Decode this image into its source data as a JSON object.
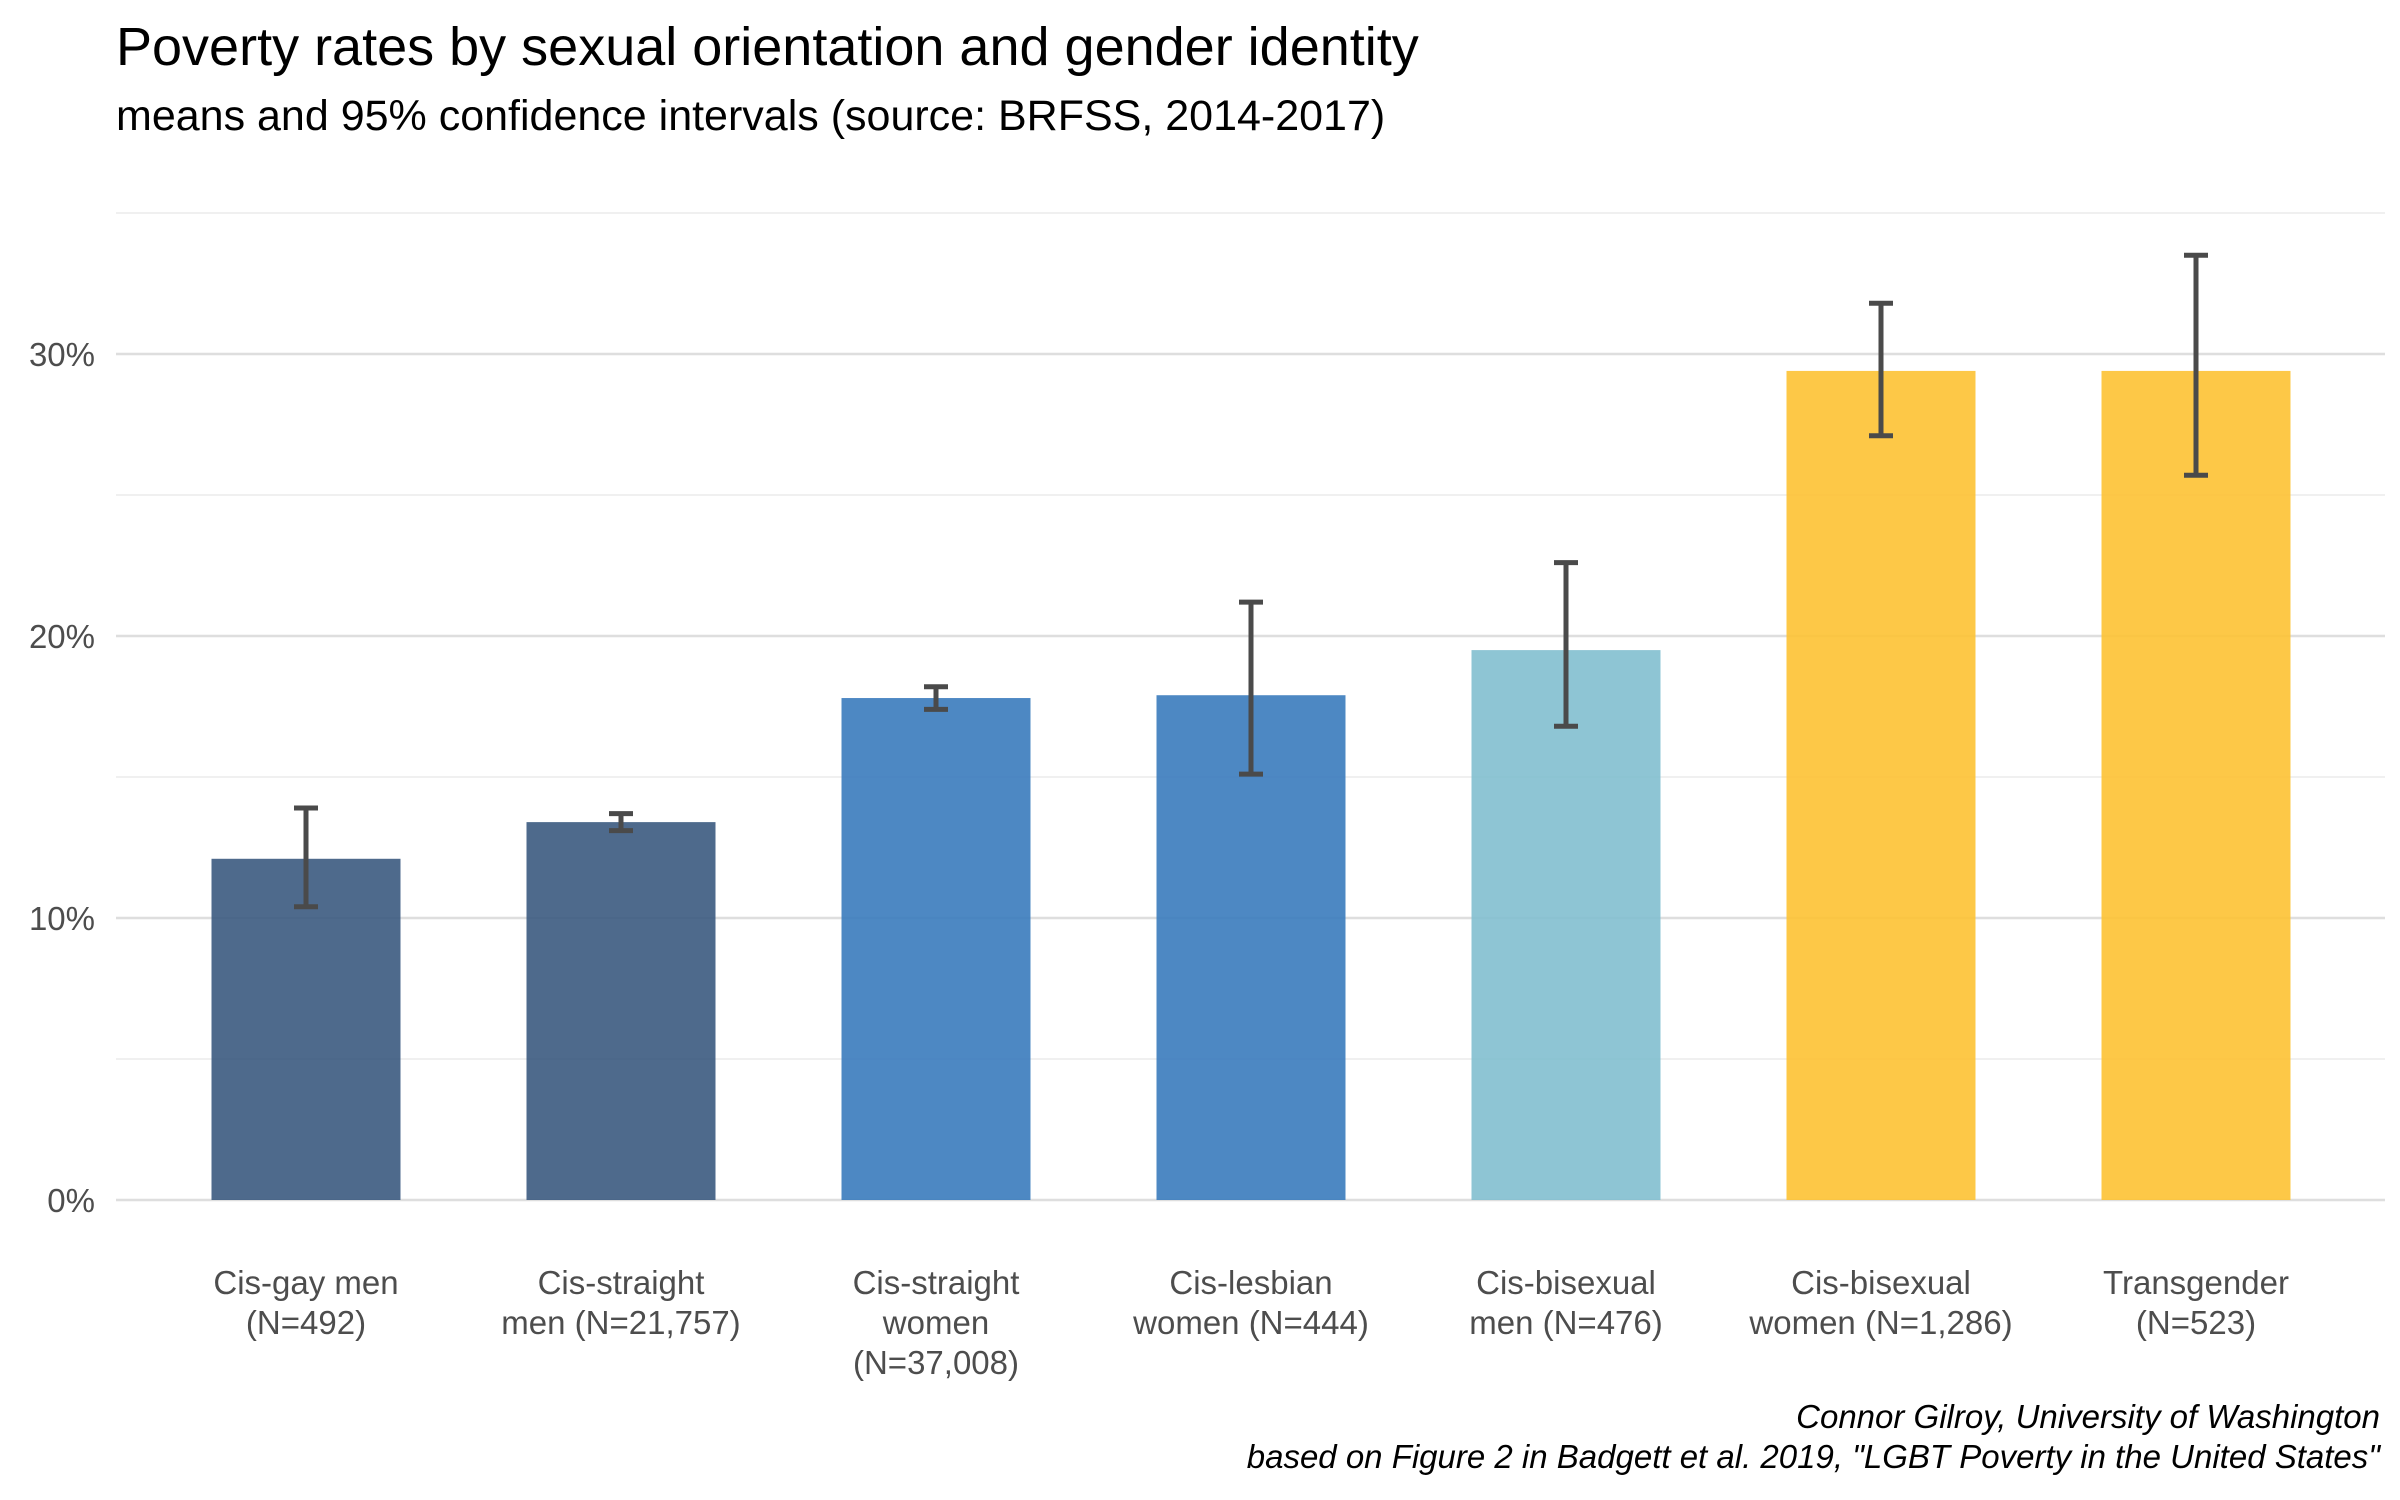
{
  "title": "Poverty rates by sexual orientation and gender identity",
  "subtitle": "means and 95% confidence intervals (source: BRFSS, 2014-2017)",
  "caption": {
    "line1": "Connor Gilroy, University of Washington",
    "line2": "based on Figure 2 in Badgett et al. 2019, \"LGBT Poverty in the United States\""
  },
  "chart_data": {
    "type": "bar",
    "title": "Poverty rates by sexual orientation and gender identity",
    "subtitle": "means and 95% confidence intervals (source: BRFSS, 2014-2017)",
    "xlabel": "",
    "ylabel": "",
    "ylim": [
      0,
      35
    ],
    "y_ticks": [
      0,
      10,
      20,
      30
    ],
    "y_tick_labels": [
      "0%",
      "10%",
      "20%",
      "30%"
    ],
    "y_tick_suffix": "%",
    "grid": true,
    "legend": "none",
    "error_bars": "95% confidence intervals",
    "categories": [
      "Cis-gay men (N=492)",
      "Cis-straight men (N=21,757)",
      "Cis-straight women (N=37,008)",
      "Cis-lesbian women (N=444)",
      "Cis-bisexual men (N=476)",
      "Cis-bisexual women (N=1,286)",
      "Transgender (N=523)"
    ],
    "category_label_lines": [
      [
        "Cis-gay men",
        "(N=492)"
      ],
      [
        "Cis-straight",
        "men (N=21,757)"
      ],
      [
        "Cis-straight",
        "women",
        "(N=37,008)"
      ],
      [
        "Cis-lesbian",
        "women (N=444)"
      ],
      [
        "Cis-bisexual",
        "men (N=476)"
      ],
      [
        "Cis-bisexual",
        "women (N=1,286)"
      ],
      [
        "Transgender",
        "(N=523)"
      ]
    ],
    "values": [
      12.1,
      13.4,
      17.8,
      17.9,
      19.5,
      29.4,
      29.4
    ],
    "ci_lower": [
      10.4,
      13.1,
      17.4,
      15.1,
      16.8,
      27.1,
      25.7
    ],
    "ci_upper": [
      13.9,
      13.7,
      18.2,
      21.2,
      22.6,
      31.8,
      33.5
    ],
    "bar_colors": [
      "#3b5a7f",
      "#3b5a7f",
      "#3a7bbd",
      "#3a7bbd",
      "#82bfcf",
      "#fdc233",
      "#fdc233"
    ]
  }
}
